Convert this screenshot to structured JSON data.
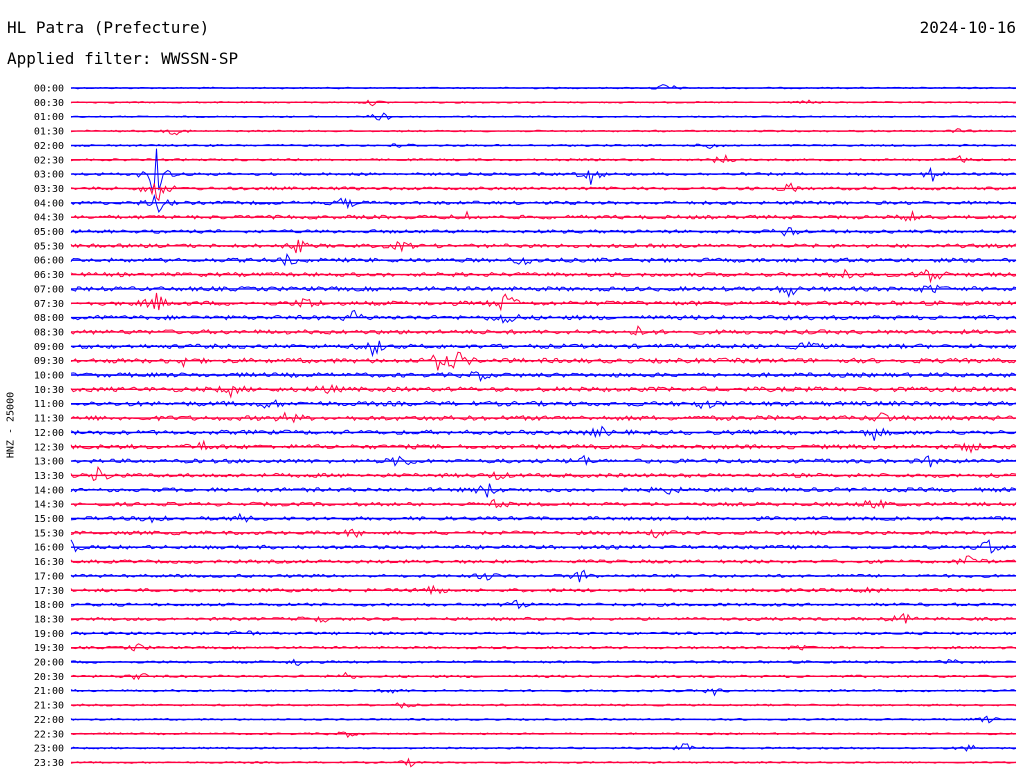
{
  "header": {
    "station": "HL Patra (Prefecture)",
    "date": "2024-10-16",
    "filter": "Applied filter: WWSSN-SP"
  },
  "chart_data": {
    "type": "line",
    "title": "HL Patra (Prefecture)",
    "subtitle": "Applied filter: WWSSN-SP",
    "ylabel": "HNZ - 25000",
    "xlabel": "",
    "grid": false,
    "colors": [
      "#0000ff",
      "#ff0040"
    ],
    "rows": [
      {
        "label": "00:00",
        "level": 0.05,
        "events": [
          {
            "t": 0.63,
            "a": 6
          }
        ]
      },
      {
        "label": "00:30",
        "level": 0.05,
        "events": [
          {
            "t": 0.32,
            "a": 3
          },
          {
            "t": 0.78,
            "a": 2
          }
        ]
      },
      {
        "label": "01:00",
        "level": 0.05,
        "events": [
          {
            "t": 0.33,
            "a": 7
          }
        ]
      },
      {
        "label": "01:30",
        "level": 0.08,
        "events": [
          {
            "t": 0.11,
            "a": 4
          },
          {
            "t": 0.94,
            "a": 2
          }
        ]
      },
      {
        "label": "02:00",
        "level": 0.12,
        "events": [
          {
            "t": 0.35,
            "a": 3
          },
          {
            "t": 0.68,
            "a": 5
          }
        ]
      },
      {
        "label": "02:30",
        "level": 0.15,
        "events": [
          {
            "t": 0.69,
            "a": 6
          },
          {
            "t": 0.94,
            "a": 4
          }
        ]
      },
      {
        "label": "03:00",
        "level": 0.25,
        "events": [
          {
            "t": 0.09,
            "a": 28
          },
          {
            "t": 0.55,
            "a": 10
          },
          {
            "t": 0.91,
            "a": 8
          }
        ]
      },
      {
        "label": "03:30",
        "level": 0.3,
        "events": [
          {
            "t": 0.09,
            "a": 18
          },
          {
            "t": 0.76,
            "a": 5
          }
        ]
      },
      {
        "label": "04:00",
        "level": 0.35,
        "events": [
          {
            "t": 0.09,
            "a": 12
          },
          {
            "t": 0.29,
            "a": 6
          }
        ]
      },
      {
        "label": "04:30",
        "level": 0.4,
        "events": [
          {
            "t": 0.42,
            "a": 5
          },
          {
            "t": 0.89,
            "a": 6
          }
        ]
      },
      {
        "label": "05:00",
        "level": 0.35,
        "events": [
          {
            "t": 0.76,
            "a": 7
          }
        ]
      },
      {
        "label": "05:30",
        "level": 0.4,
        "events": [
          {
            "t": 0.24,
            "a": 7
          },
          {
            "t": 0.35,
            "a": 5
          }
        ]
      },
      {
        "label": "06:00",
        "level": 0.45,
        "events": [
          {
            "t": 0.48,
            "a": 6
          },
          {
            "t": 0.23,
            "a": 5
          }
        ]
      },
      {
        "label": "06:30",
        "level": 0.45,
        "events": [
          {
            "t": 0.82,
            "a": 8
          },
          {
            "t": 0.91,
            "a": 12
          }
        ]
      },
      {
        "label": "07:00",
        "level": 0.5,
        "events": [
          {
            "t": 0.76,
            "a": 7
          },
          {
            "t": 0.91,
            "a": 5
          }
        ]
      },
      {
        "label": "07:30",
        "level": 0.5,
        "events": [
          {
            "t": 0.09,
            "a": 10
          },
          {
            "t": 0.25,
            "a": 7
          },
          {
            "t": 0.46,
            "a": 12
          }
        ]
      },
      {
        "label": "08:00",
        "level": 0.5,
        "events": [
          {
            "t": 0.3,
            "a": 6
          },
          {
            "t": 0.46,
            "a": 9
          }
        ]
      },
      {
        "label": "08:30",
        "level": 0.5,
        "events": [
          {
            "t": 0.6,
            "a": 4
          }
        ]
      },
      {
        "label": "09:00",
        "level": 0.5,
        "events": [
          {
            "t": 0.32,
            "a": 10
          },
          {
            "t": 0.78,
            "a": 5
          }
        ]
      },
      {
        "label": "09:30",
        "level": 0.55,
        "events": [
          {
            "t": 0.39,
            "a": 10
          },
          {
            "t": 0.41,
            "a": 9
          },
          {
            "t": 0.12,
            "a": 5
          }
        ]
      },
      {
        "label": "10:00",
        "level": 0.5,
        "events": [
          {
            "t": 0.43,
            "a": 6
          }
        ]
      },
      {
        "label": "10:30",
        "level": 0.55,
        "events": [
          {
            "t": 0.17,
            "a": 6
          },
          {
            "t": 0.27,
            "a": 5
          }
        ]
      },
      {
        "label": "11:00",
        "level": 0.55,
        "events": [
          {
            "t": 0.21,
            "a": 5
          },
          {
            "t": 0.67,
            "a": 5
          }
        ]
      },
      {
        "label": "11:30",
        "level": 0.55,
        "events": [
          {
            "t": 0.23,
            "a": 6
          },
          {
            "t": 0.86,
            "a": 6
          }
        ]
      },
      {
        "label": "12:00",
        "level": 0.5,
        "events": [
          {
            "t": 0.56,
            "a": 5
          },
          {
            "t": 0.85,
            "a": 7
          }
        ]
      },
      {
        "label": "12:30",
        "level": 0.5,
        "events": [
          {
            "t": 0.14,
            "a": 5
          },
          {
            "t": 0.95,
            "a": 5
          }
        ]
      },
      {
        "label": "13:00",
        "level": 0.45,
        "events": [
          {
            "t": 0.35,
            "a": 8
          },
          {
            "t": 0.54,
            "a": 6
          },
          {
            "t": 0.91,
            "a": 5
          }
        ]
      },
      {
        "label": "13:30",
        "level": 0.45,
        "events": [
          {
            "t": 0.03,
            "a": 9
          },
          {
            "t": 0.45,
            "a": 4
          }
        ]
      },
      {
        "label": "14:00",
        "level": 0.45,
        "events": [
          {
            "t": 0.44,
            "a": 8
          },
          {
            "t": 0.63,
            "a": 5
          }
        ]
      },
      {
        "label": "14:30",
        "level": 0.4,
        "events": [
          {
            "t": 0.45,
            "a": 4
          },
          {
            "t": 0.85,
            "a": 7
          }
        ]
      },
      {
        "label": "15:00",
        "level": 0.4,
        "events": [
          {
            "t": 0.09,
            "a": 7
          },
          {
            "t": 0.18,
            "a": 4
          }
        ]
      },
      {
        "label": "15:30",
        "level": 0.4,
        "events": [
          {
            "t": 0.3,
            "a": 4
          },
          {
            "t": 0.62,
            "a": 4
          }
        ]
      },
      {
        "label": "16:00",
        "level": 0.4,
        "events": [
          {
            "t": 0.0,
            "a": 6
          },
          {
            "t": 0.97,
            "a": 9
          }
        ]
      },
      {
        "label": "16:30",
        "level": 0.35,
        "events": [
          {
            "t": 0.95,
            "a": 7
          }
        ]
      },
      {
        "label": "17:00",
        "level": 0.3,
        "events": [
          {
            "t": 0.44,
            "a": 5
          },
          {
            "t": 0.54,
            "a": 7
          }
        ]
      },
      {
        "label": "17:30",
        "level": 0.35,
        "events": [
          {
            "t": 0.38,
            "a": 8
          },
          {
            "t": 0.85,
            "a": 6
          }
        ]
      },
      {
        "label": "18:00",
        "level": 0.3,
        "events": [
          {
            "t": 0.47,
            "a": 5
          }
        ]
      },
      {
        "label": "18:30",
        "level": 0.3,
        "events": [
          {
            "t": 0.26,
            "a": 6
          },
          {
            "t": 0.88,
            "a": 6
          }
        ]
      },
      {
        "label": "19:00",
        "level": 0.25,
        "events": [
          {
            "t": 0.18,
            "a": 7
          }
        ]
      },
      {
        "label": "19:30",
        "level": 0.2,
        "events": [
          {
            "t": 0.07,
            "a": 4
          },
          {
            "t": 0.77,
            "a": 3
          }
        ]
      },
      {
        "label": "20:00",
        "level": 0.2,
        "events": [
          {
            "t": 0.24,
            "a": 4
          },
          {
            "t": 0.93,
            "a": 3
          }
        ]
      },
      {
        "label": "20:30",
        "level": 0.2,
        "events": [
          {
            "t": 0.07,
            "a": 5
          },
          {
            "t": 0.29,
            "a": 4
          }
        ]
      },
      {
        "label": "21:00",
        "level": 0.15,
        "events": [
          {
            "t": 0.34,
            "a": 3
          },
          {
            "t": 0.68,
            "a": 4
          }
        ]
      },
      {
        "label": "21:30",
        "level": 0.12,
        "events": [
          {
            "t": 0.35,
            "a": 3
          }
        ]
      },
      {
        "label": "22:00",
        "level": 0.1,
        "events": [
          {
            "t": 0.97,
            "a": 4
          }
        ]
      },
      {
        "label": "22:30",
        "level": 0.1,
        "events": [
          {
            "t": 0.29,
            "a": 4
          }
        ]
      },
      {
        "label": "23:00",
        "level": 0.1,
        "events": [
          {
            "t": 0.65,
            "a": 5
          },
          {
            "t": 0.95,
            "a": 4
          }
        ]
      },
      {
        "label": "23:30",
        "level": 0.08,
        "events": [
          {
            "t": 0.36,
            "a": 4
          }
        ]
      }
    ]
  }
}
